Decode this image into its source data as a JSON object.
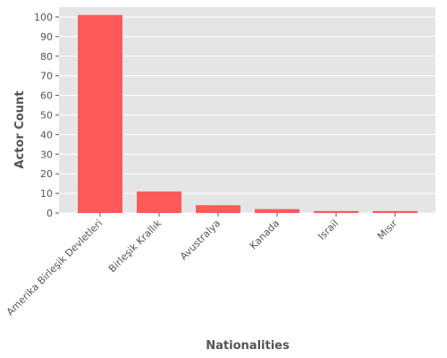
{
  "chart_data": {
    "type": "bar",
    "categories": [
      "Amerika Birleşik Devletleri",
      "Birleşik Krallık",
      "Avustralya",
      "Kanada",
      "Israil",
      "Mısır"
    ],
    "values": [
      101,
      11,
      4,
      2,
      1,
      1
    ],
    "xlabel": "Nationalities",
    "ylabel": "Actor Count",
    "ylim": [
      0,
      105
    ],
    "yticks": [
      0,
      10,
      20,
      30,
      40,
      50,
      60,
      70,
      80,
      90,
      100
    ],
    "grid": true,
    "colors": {
      "bar": "#ff5a5a",
      "plot_background": "#e5e5e5",
      "grid": "#ffffff"
    }
  }
}
